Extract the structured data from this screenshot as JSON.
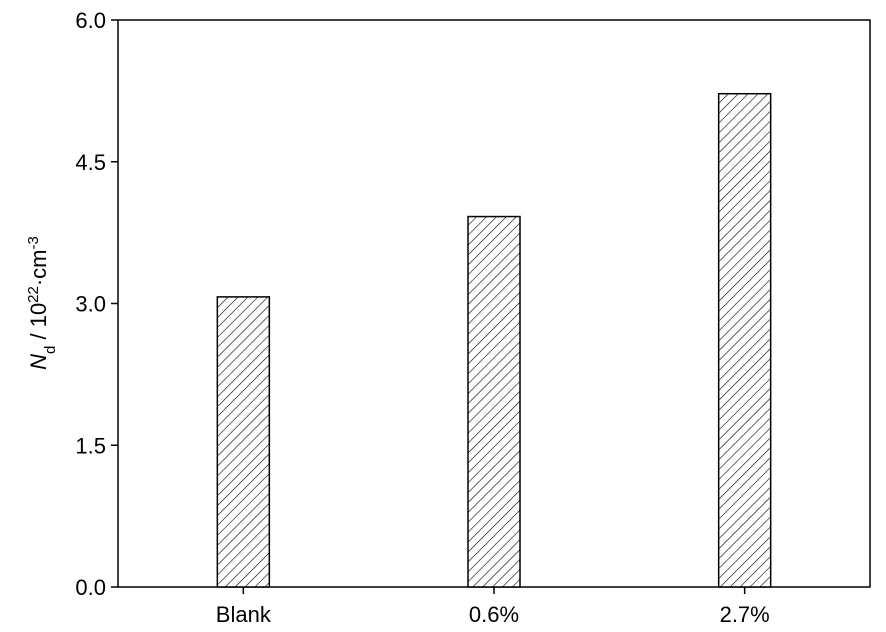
{
  "chart_data": {
    "type": "bar",
    "ylabel_parts": [
      "N",
      "d",
      " / 10",
      "22",
      "·cm",
      "-3"
    ],
    "categories": [
      "Blank",
      "0.6%",
      "2.7%"
    ],
    "values": [
      3.07,
      3.92,
      5.22
    ],
    "color": "#ffffff",
    "hatch": true,
    "ylim": [
      0,
      6
    ],
    "yticks": [
      {
        "value": 0,
        "label": "0.0"
      },
      {
        "value": 1.5,
        "label": "1.5"
      },
      {
        "value": 3,
        "label": "3.0"
      },
      {
        "value": 4.5,
        "label": "4.5"
      },
      {
        "value": 6,
        "label": "6.0"
      }
    ],
    "grid": false
  }
}
